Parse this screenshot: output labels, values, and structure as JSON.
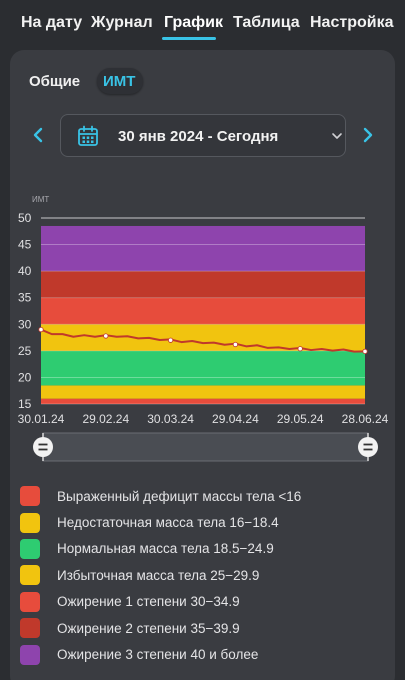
{
  "nav": {
    "tabs": [
      {
        "label": "На дату"
      },
      {
        "label": "Журнал"
      },
      {
        "label": "График"
      },
      {
        "label": "Таблица"
      },
      {
        "label": "Настройка"
      }
    ],
    "active_index": 2
  },
  "subtabs": {
    "general": "Общие",
    "bmi": "ИМТ",
    "active": "bmi"
  },
  "date_range": {
    "label": "30 янв 2024 - Сегодня"
  },
  "colors": {
    "accent": "#39c3e6",
    "line": "#c0392b",
    "deficit": "#e74c3c",
    "under": "#f1c40f",
    "normal": "#2ecc71",
    "over": "#f1c40f",
    "ob1": "#e74c3c",
    "ob2": "#c0392b",
    "ob3": "#8e44ad"
  },
  "chart_data": {
    "type": "line",
    "ylabel": "ИМТ",
    "ylim": [
      15,
      50
    ],
    "yticks": [
      15,
      20,
      25,
      30,
      35,
      40,
      45,
      50
    ],
    "xlim": [
      "30.01.24",
      "28.06.24"
    ],
    "xticks": [
      "30.01.24",
      "29.02.24",
      "30.03.24",
      "29.04.24",
      "29.05.24",
      "28.06.24"
    ],
    "bands": [
      {
        "from": 15,
        "to": 16,
        "color": "#e74c3c"
      },
      {
        "from": 16,
        "to": 18.5,
        "color": "#f1c40f"
      },
      {
        "from": 18.5,
        "to": 25,
        "color": "#2ecc71"
      },
      {
        "from": 25,
        "to": 30,
        "color": "#f1c40f"
      },
      {
        "from": 30,
        "to": 35,
        "color": "#e74c3c"
      },
      {
        "from": 35,
        "to": 40,
        "color": "#c0392b"
      },
      {
        "from": 40,
        "to": 48.5,
        "color": "#8e44ad"
      }
    ],
    "series": [
      {
        "x": [
          0,
          5,
          10,
          15,
          20,
          25,
          30,
          35,
          40,
          45,
          50,
          55,
          60,
          65,
          70,
          75,
          80,
          85,
          90,
          95,
          100,
          105,
          110,
          115,
          120,
          125,
          130,
          135,
          140,
          145,
          150
        ],
        "values": [
          29.0,
          28.3,
          28.0,
          27.8,
          27.8,
          27.8,
          27.8,
          27.8,
          27.6,
          27.5,
          27.3,
          27.2,
          27.0,
          26.8,
          26.7,
          26.6,
          26.4,
          26.3,
          26.2,
          26.0,
          25.9,
          25.7,
          25.5,
          25.5,
          25.4,
          25.3,
          25.2,
          25.2,
          25.1,
          25.0,
          24.9
        ],
        "markers_x": [
          0,
          30,
          60,
          90,
          120,
          150
        ],
        "markers_y": [
          29.0,
          27.8,
          27.0,
          26.2,
          25.4,
          24.9
        ]
      }
    ]
  },
  "legend": [
    {
      "label": "Выраженный дефицит массы тела <16",
      "color": "#e74c3c"
    },
    {
      "label": "Недостаточная масса тела 16−18.4",
      "color": "#f1c40f"
    },
    {
      "label": "Нормальная масса тела 18.5−24.9",
      "color": "#2ecc71"
    },
    {
      "label": "Избыточная масса тела 25−29.9",
      "color": "#f1c40f"
    },
    {
      "label": "Ожирение 1 степени 30−34.9",
      "color": "#e74c3c"
    },
    {
      "label": "Ожирение 2 степени 35−39.9",
      "color": "#c0392b"
    },
    {
      "label": "Ожирение 3 степени 40 и более",
      "color": "#8e44ad"
    }
  ],
  "icons": {
    "prev": "chevron-left-icon",
    "next": "chevron-right-icon",
    "calendar": "calendar-icon",
    "dropdown": "chevron-down-icon",
    "handle": "equals-handle-icon"
  }
}
